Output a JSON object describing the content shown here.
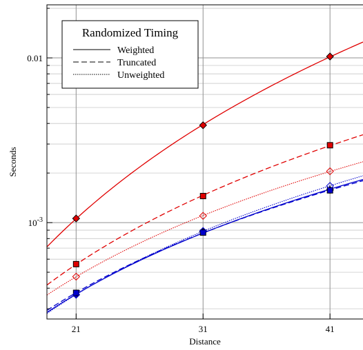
{
  "chart_data": {
    "type": "line",
    "title": "",
    "xlabel": "Distance",
    "ylabel": "Seconds",
    "y_scale": "log",
    "xlim": [
      18.7,
      43.6
    ],
    "ylim": [
      0.00026,
      0.021
    ],
    "x_ticks": [
      21,
      31,
      41
    ],
    "x_tick_labels": [
      "21",
      "31",
      "41"
    ],
    "y_major_ticks": [
      0.001,
      0.01
    ],
    "y_tick_labels": [
      "10^-3",
      "0.01"
    ],
    "grid": true,
    "legend": {
      "title": "Randomized Timing",
      "position": "top-left",
      "entries": [
        {
          "label": "Weighted",
          "linestyle": "solid"
        },
        {
          "label": "Truncated",
          "linestyle": "dashed"
        },
        {
          "label": "Unweighted",
          "linestyle": "dotted"
        }
      ]
    },
    "series": [
      {
        "color": "#e00000",
        "marker": "diamond",
        "marker_fill": "#e00000",
        "linestyle": "solid",
        "x": [
          21,
          31,
          41
        ],
        "y": [
          0.00106,
          0.0039,
          0.0102
        ]
      },
      {
        "color": "#e00000",
        "marker": "square",
        "marker_fill": "#e00000",
        "linestyle": "dashed",
        "x": [
          21,
          31,
          41
        ],
        "y": [
          0.00056,
          0.00145,
          0.00295
        ]
      },
      {
        "color": "#e00000",
        "marker": "diamond",
        "marker_fill": "none",
        "linestyle": "dotted",
        "x": [
          21,
          31,
          41
        ],
        "y": [
          0.00047,
          0.0011,
          0.00205
        ]
      },
      {
        "color": "#0000cc",
        "marker": "diamond",
        "marker_fill": "#0000cc",
        "linestyle": "solid",
        "x": [
          21,
          31,
          41
        ],
        "y": [
          0.000365,
          0.00088,
          0.00158
        ]
      },
      {
        "color": "#0000cc",
        "marker": "square",
        "marker_fill": "#0000cc",
        "linestyle": "dashed",
        "x": [
          21,
          31,
          41
        ],
        "y": [
          0.000375,
          0.00087,
          0.00157
        ]
      },
      {
        "color": "#0000cc",
        "marker": "diamond",
        "marker_fill": "none",
        "linestyle": "dotted",
        "x": [
          21,
          31,
          41
        ],
        "y": [
          0.000365,
          0.00089,
          0.00167
        ]
      }
    ]
  }
}
